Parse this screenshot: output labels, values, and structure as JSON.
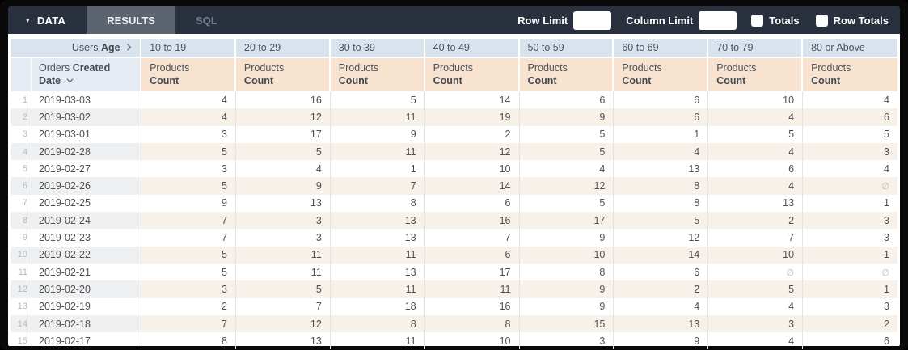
{
  "toolbar": {
    "tabs": {
      "data": "DATA",
      "results": "RESULTS",
      "sql": "SQL"
    },
    "row_limit": {
      "label": "Row Limit",
      "value": ""
    },
    "column_limit": {
      "label": "Column Limit",
      "value": ""
    },
    "totals": {
      "label": "Totals",
      "checked": false
    },
    "row_totals": {
      "label": "Row Totals",
      "checked": false
    }
  },
  "table": {
    "pivot_field": {
      "prefix": "Users",
      "name": "Age"
    },
    "row_field": {
      "prefix": "Orders",
      "name": "Created Date"
    },
    "measure": {
      "prefix": "Products",
      "name": "Count"
    },
    "null_symbol": "∅",
    "age_buckets": [
      "10 to 19",
      "20 to 29",
      "30 to 39",
      "40 to 49",
      "50 to 59",
      "60 to 69",
      "70 to 79",
      "80 or Above"
    ],
    "rows": [
      {
        "num": 1,
        "date": "2019-03-03",
        "values": [
          4,
          16,
          5,
          14,
          6,
          6,
          10,
          4
        ]
      },
      {
        "num": 2,
        "date": "2019-03-02",
        "values": [
          4,
          12,
          11,
          19,
          9,
          6,
          4,
          6
        ]
      },
      {
        "num": 3,
        "date": "2019-03-01",
        "values": [
          3,
          17,
          9,
          2,
          5,
          1,
          5,
          5
        ]
      },
      {
        "num": 4,
        "date": "2019-02-28",
        "values": [
          5,
          5,
          11,
          12,
          5,
          4,
          4,
          3
        ]
      },
      {
        "num": 5,
        "date": "2019-02-27",
        "values": [
          3,
          4,
          1,
          10,
          4,
          13,
          6,
          4
        ]
      },
      {
        "num": 6,
        "date": "2019-02-26",
        "values": [
          5,
          9,
          7,
          14,
          12,
          8,
          4,
          null
        ]
      },
      {
        "num": 7,
        "date": "2019-02-25",
        "values": [
          9,
          13,
          8,
          6,
          5,
          8,
          13,
          1
        ]
      },
      {
        "num": 8,
        "date": "2019-02-24",
        "values": [
          7,
          3,
          13,
          16,
          17,
          5,
          2,
          3
        ]
      },
      {
        "num": 9,
        "date": "2019-02-23",
        "values": [
          7,
          3,
          13,
          7,
          9,
          12,
          7,
          3
        ]
      },
      {
        "num": 10,
        "date": "2019-02-22",
        "values": [
          5,
          11,
          11,
          6,
          10,
          14,
          10,
          1
        ]
      },
      {
        "num": 11,
        "date": "2019-02-21",
        "values": [
          5,
          11,
          13,
          17,
          8,
          6,
          null,
          null
        ]
      },
      {
        "num": 12,
        "date": "2019-02-20",
        "values": [
          3,
          5,
          11,
          11,
          9,
          2,
          5,
          1
        ]
      },
      {
        "num": 13,
        "date": "2019-02-19",
        "values": [
          2,
          7,
          18,
          16,
          9,
          4,
          4,
          3
        ]
      },
      {
        "num": 14,
        "date": "2019-02-18",
        "values": [
          7,
          12,
          8,
          8,
          15,
          13,
          3,
          2
        ]
      },
      {
        "num": 15,
        "date": "2019-02-17",
        "values": [
          8,
          13,
          11,
          10,
          3,
          9,
          4,
          6
        ]
      }
    ]
  },
  "colors": {
    "toolbar_bg": "#2a313e",
    "tab_active_bg": "#5c646f",
    "tab_sql_text": "#737d8f",
    "header_blue": "#d9e3ee",
    "header_blue_light": "#e4ebf3",
    "header_peach": "#f8e3d1",
    "row_alt_cool": "#eef0f2",
    "row_alt_warm": "#f8f1ea",
    "grid_line": "#e4e4e4",
    "text_dark": "#4d5359",
    "row_number_text": "#b3bac1",
    "null_text": "#bcb6b0"
  }
}
